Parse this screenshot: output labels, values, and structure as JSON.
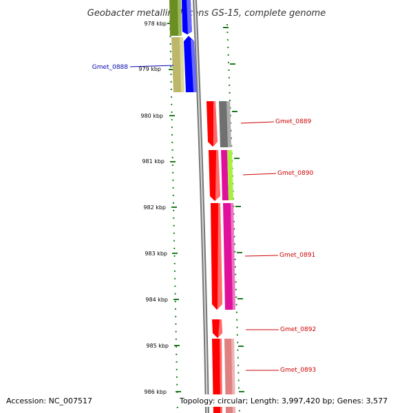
{
  "title": "Geobacter metallireducens GS-15, complete genome",
  "accession": "Accession: NC_007517",
  "topology": "Topology: circular; Length: 3,997,420 bp; Genes: 3,577",
  "colors": {
    "backbone": "#888888",
    "tick": "#1a7a1a",
    "forward_strand_label": "#0000aa",
    "reverse_strand_label": "#cc0000",
    "olive": "#6b8e23",
    "khaki": "#bdb76b",
    "blue": "#0000ff",
    "red": "#ff0000",
    "gray": "#707070",
    "magenta": "#e0109c",
    "lime": "#a8f040",
    "salmon": "#e08080"
  },
  "scale": [
    {
      "label": "978 kbp"
    },
    {
      "label": "979 kbp"
    },
    {
      "label": "980 kbp"
    },
    {
      "label": "981 kbp"
    },
    {
      "label": "982 kbp"
    },
    {
      "label": "983 kbp"
    },
    {
      "label": "984 kbp"
    },
    {
      "label": "985 kbp"
    },
    {
      "label": "986 kbp"
    }
  ],
  "genes": [
    {
      "label": "Gmet_0888",
      "strand": "forward"
    },
    {
      "label": "Gmet_0889",
      "strand": "reverse"
    },
    {
      "label": "Gmet_0890",
      "strand": "reverse"
    },
    {
      "label": "Gmet_0891",
      "strand": "reverse"
    },
    {
      "label": "Gmet_0892",
      "strand": "reverse"
    },
    {
      "label": "Gmet_0893",
      "strand": "reverse"
    }
  ]
}
